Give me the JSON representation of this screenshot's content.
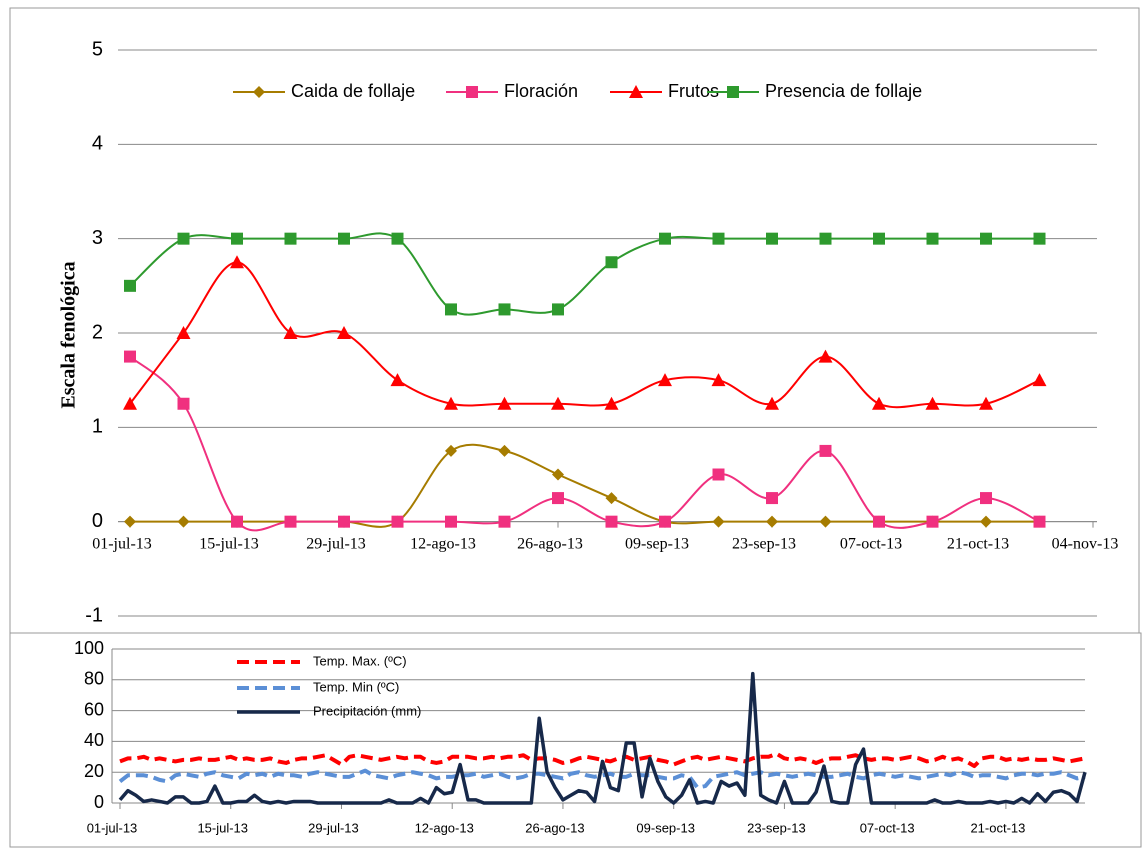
{
  "chart_data": [
    {
      "type": "line",
      "smooth": true,
      "y_label": "Escala fenológica",
      "x": [
        0,
        7,
        14,
        21,
        28,
        35,
        42,
        49,
        56,
        63,
        70,
        77,
        84,
        91,
        98,
        105,
        112,
        119
      ],
      "xlim": [
        0,
        126
      ],
      "xticks": [
        {
          "value": 0,
          "label": "01-jul-13"
        },
        {
          "value": 14,
          "label": "15-jul-13"
        },
        {
          "value": 28,
          "label": "29-jul-13"
        },
        {
          "value": 42,
          "label": "12-ago-13"
        },
        {
          "value": 56,
          "label": "26-ago-13"
        },
        {
          "value": 70,
          "label": "09-sep-13"
        },
        {
          "value": 84,
          "label": "23-sep-13"
        },
        {
          "value": 98,
          "label": "07-oct-13"
        },
        {
          "value": 112,
          "label": "21-oct-13"
        },
        {
          "value": 126,
          "label": "04-nov-13"
        }
      ],
      "ylim": [
        -1,
        5
      ],
      "yticks": [
        -1,
        0,
        1,
        2,
        3,
        4,
        5
      ],
      "grid": true,
      "legend": "top",
      "series": [
        {
          "name": "Caida de follaje",
          "color": "#a67c00",
          "marker": "diamond",
          "values": [
            0,
            0,
            0,
            0,
            0,
            0,
            0.75,
            0.75,
            0.5,
            0.25,
            0,
            0,
            0,
            0,
            0,
            0,
            0,
            0
          ]
        },
        {
          "name": "Floración",
          "color": "#f0307f",
          "marker": "square",
          "values": [
            1.75,
            1.25,
            0,
            0,
            0,
            0,
            0,
            0,
            0.25,
            0,
            0,
            0.5,
            0.25,
            0.75,
            0,
            0,
            0.25,
            0
          ]
        },
        {
          "name": "Frutos",
          "color": "#ff0000",
          "marker": "triangle",
          "values": [
            1.25,
            2,
            2.75,
            2,
            2,
            1.5,
            1.25,
            1.25,
            1.25,
            1.25,
            1.5,
            1.5,
            1.25,
            1.75,
            1.25,
            1.25,
            1.25,
            1.5
          ]
        },
        {
          "name": "Presencia de follaje",
          "color": "#2e9a2e",
          "marker": "square",
          "values": [
            2.5,
            3,
            3,
            3,
            3,
            3,
            2.25,
            2.25,
            2.25,
            2.75,
            3,
            3,
            3,
            3,
            3,
            3,
            3,
            3
          ]
        }
      ]
    },
    {
      "type": "line",
      "smooth": false,
      "x": [
        0,
        1,
        2,
        3,
        4,
        5,
        6,
        7,
        8,
        9,
        10,
        11,
        12,
        13,
        14,
        15,
        16,
        17,
        18,
        19,
        20,
        21,
        22,
        23,
        24,
        25,
        26,
        27,
        28,
        29,
        30,
        31,
        32,
        33,
        34,
        35,
        36,
        37,
        38,
        39,
        40,
        41,
        42,
        43,
        44,
        45,
        46,
        47,
        48,
        49,
        50,
        51,
        52,
        53,
        54,
        55,
        56,
        57,
        58,
        59,
        60,
        61,
        62,
        63,
        64,
        65,
        66,
        67,
        68,
        69,
        70,
        71,
        72,
        73,
        74,
        75,
        76,
        77,
        78,
        79,
        80,
        81,
        82,
        83,
        84,
        85,
        86,
        87,
        88,
        89,
        90,
        91,
        92,
        93,
        94,
        95,
        96,
        97,
        98,
        99,
        100,
        101,
        102,
        103,
        104,
        105,
        106,
        107,
        108,
        109,
        110,
        111,
        112,
        113,
        114,
        115,
        116,
        117,
        118,
        119,
        120,
        121,
        122
      ],
      "xlim": [
        0,
        122
      ],
      "xticks": [
        {
          "value": 0,
          "label": "01-jul-13"
        },
        {
          "value": 14,
          "label": "15-jul-13"
        },
        {
          "value": 28,
          "label": "29-jul-13"
        },
        {
          "value": 42,
          "label": "12-ago-13"
        },
        {
          "value": 56,
          "label": "26-ago-13"
        },
        {
          "value": 70,
          "label": "09-sep-13"
        },
        {
          "value": 84,
          "label": "23-sep-13"
        },
        {
          "value": 98,
          "label": "07-oct-13"
        },
        {
          "value": 112,
          "label": "21-oct-13"
        }
      ],
      "ylim": [
        0,
        100
      ],
      "yticks": [
        0,
        20,
        40,
        60,
        80,
        100
      ],
      "grid": true,
      "legend": "top-left",
      "series": [
        {
          "name": "Temp. Max. (ºC)",
          "color": "#ff0000",
          "dash": true,
          "values": [
            27,
            29,
            29,
            30,
            28,
            29,
            28,
            27,
            28,
            28,
            29,
            28,
            28,
            29,
            30,
            28,
            29,
            28,
            28,
            29,
            27,
            26,
            28,
            29,
            29,
            30,
            31,
            28,
            25,
            30,
            31,
            30,
            29,
            28,
            29,
            30,
            29,
            30,
            30,
            27,
            26,
            27,
            30,
            30,
            30,
            29,
            29,
            30,
            29,
            30,
            30,
            31,
            28,
            29,
            29,
            28,
            26,
            27,
            29,
            30,
            29,
            28,
            27,
            29,
            30,
            28,
            29,
            30,
            28,
            27,
            25,
            27,
            29,
            30,
            28,
            29,
            30,
            29,
            28,
            27,
            29,
            30,
            30,
            32,
            29,
            28,
            29,
            28,
            26,
            28,
            29,
            29,
            30,
            31,
            29,
            28,
            29,
            29,
            28,
            29,
            30,
            29,
            27,
            28,
            30,
            28,
            29,
            27,
            24,
            29,
            30,
            30,
            28,
            29,
            28,
            29,
            28,
            28,
            29,
            28,
            27,
            28,
            29
          ]
        },
        {
          "name": "Temp. Min (ºC)",
          "color": "#5b8fd6",
          "dash": true,
          "values": [
            14,
            18,
            18,
            18,
            17,
            15,
            14,
            18,
            19,
            18,
            17,
            19,
            20,
            18,
            17,
            16,
            19,
            18,
            19,
            17,
            19,
            18,
            18,
            17,
            19,
            20,
            19,
            18,
            17,
            17,
            19,
            21,
            18,
            17,
            16,
            18,
            19,
            20,
            19,
            18,
            16,
            17,
            17,
            18,
            18,
            19,
            17,
            18,
            19,
            17,
            16,
            17,
            19,
            19,
            18,
            17,
            16,
            19,
            20,
            18,
            17,
            18,
            19,
            17,
            17,
            19,
            18,
            18,
            17,
            16,
            16,
            18,
            17,
            10,
            11,
            17,
            18,
            19,
            20,
            18,
            19,
            20,
            18,
            19,
            18,
            17,
            18,
            19,
            18,
            17,
            17,
            18,
            19,
            17,
            16,
            18,
            19,
            18,
            17,
            18,
            17,
            16,
            17,
            18,
            19,
            18,
            20,
            19,
            17,
            18,
            18,
            17,
            16,
            18,
            19,
            19,
            18,
            19,
            19,
            20,
            18,
            16,
            17
          ]
        },
        {
          "name": "Precipitación (mm)",
          "color": "#17294a",
          "dash": false,
          "values": [
            2,
            8,
            5,
            1,
            2,
            1,
            0,
            4,
            4,
            0,
            0,
            1,
            11,
            0,
            0,
            1,
            1,
            5,
            1,
            0,
            1,
            0,
            1,
            1,
            1,
            0,
            0,
            0,
            0,
            0,
            0,
            0,
            0,
            0,
            2,
            0,
            0,
            0,
            3,
            0,
            10,
            6,
            7,
            25,
            2,
            2,
            0,
            0,
            0,
            0,
            0,
            0,
            0,
            55,
            20,
            10,
            2,
            5,
            8,
            7,
            1,
            27,
            10,
            8,
            39,
            39,
            4,
            29,
            14,
            4,
            0,
            5,
            15,
            0,
            1,
            0,
            14,
            11,
            13,
            5,
            84,
            5,
            2,
            0,
            14,
            0,
            0,
            0,
            7,
            24,
            1,
            0,
            0,
            25,
            35,
            0,
            0,
            0,
            0,
            0,
            0,
            0,
            0,
            2,
            0,
            0,
            1,
            0,
            0,
            0,
            1,
            0,
            1,
            0,
            3,
            0,
            6,
            1,
            7,
            8,
            6,
            1,
            20
          ]
        }
      ]
    }
  ]
}
